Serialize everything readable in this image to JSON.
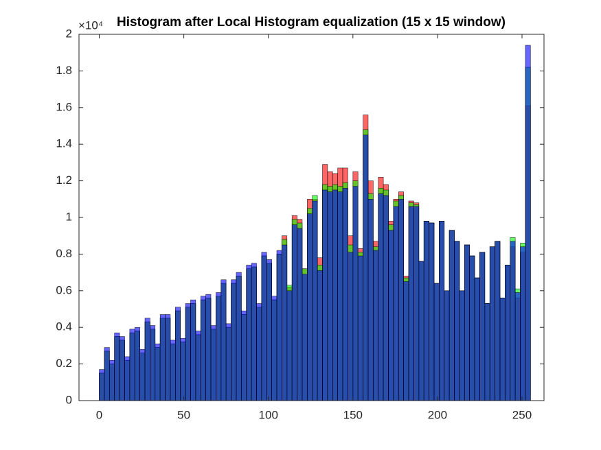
{
  "chart_data": {
    "type": "histogram",
    "title": "Histogram after Local Histogram equalization (15 x 15 window)",
    "y_exponent_label": "×10⁴",
    "bins": [
      0,
      3,
      6,
      9,
      12,
      15,
      18,
      21,
      24,
      27,
      30,
      33,
      36,
      39,
      42,
      45,
      48,
      51,
      54,
      57,
      60,
      63,
      66,
      69,
      72,
      75,
      78,
      81,
      84,
      87,
      90,
      93,
      96,
      99,
      102,
      105,
      108,
      111,
      114,
      117,
      120,
      123,
      126,
      129,
      132,
      135,
      138,
      141,
      144,
      147,
      150,
      153,
      156,
      159,
      162,
      165,
      168,
      171,
      174,
      177,
      180,
      183,
      186,
      189,
      192,
      195,
      198,
      201,
      204,
      207,
      210,
      213,
      216,
      219,
      222,
      225,
      228,
      231,
      234,
      237,
      240,
      243,
      246,
      249,
      252,
      255
    ],
    "series": [
      {
        "name": "Red",
        "color": "#ff0000",
        "values": [
          0.15,
          0.27,
          0.2,
          0.35,
          0.33,
          0.22,
          0.37,
          0.38,
          0.26,
          0.43,
          0.39,
          0.29,
          0.45,
          0.45,
          0.31,
          0.49,
          0.32,
          0.51,
          0.53,
          0.36,
          0.55,
          0.56,
          0.39,
          0.57,
          0.64,
          0.4,
          0.64,
          0.68,
          0.47,
          0.72,
          0.73,
          0.51,
          0.79,
          0.75,
          0.55,
          0.8,
          0.9,
          0.62,
          1.01,
          0.99,
          0.72,
          1.1,
          1.1,
          0.78,
          1.29,
          1.25,
          1.24,
          1.27,
          1.27,
          0.9,
          1.25,
          0.83,
          1.56,
          1.2,
          0.87,
          1.22,
          1.18,
          0.98,
          1.1,
          1.14,
          0.68,
          1.09,
          1.08,
          0.76,
          0.98,
          0.97,
          0.64,
          0.98,
          0.6,
          0.93,
          0.87,
          0.6,
          0.85,
          0.79,
          0.67,
          0.81,
          0.53,
          0.84,
          0.87,
          0.56,
          0.74,
          0.84,
          0.56,
          0.81,
          1.61
        ]
      },
      {
        "name": "Green",
        "color": "#00ff00",
        "values": [
          0.15,
          0.27,
          0.2,
          0.35,
          0.33,
          0.22,
          0.37,
          0.38,
          0.26,
          0.43,
          0.39,
          0.29,
          0.45,
          0.45,
          0.31,
          0.49,
          0.32,
          0.51,
          0.53,
          0.36,
          0.55,
          0.56,
          0.39,
          0.57,
          0.64,
          0.4,
          0.64,
          0.68,
          0.47,
          0.72,
          0.73,
          0.51,
          0.79,
          0.75,
          0.55,
          0.8,
          0.88,
          0.63,
          0.99,
          0.97,
          0.72,
          1.05,
          1.12,
          0.74,
          1.18,
          1.17,
          1.18,
          1.17,
          1.19,
          0.85,
          1.2,
          0.81,
          1.48,
          1.13,
          0.84,
          1.16,
          1.15,
          0.96,
          1.09,
          1.12,
          0.67,
          1.08,
          1.07,
          0.76,
          0.98,
          0.97,
          0.64,
          0.98,
          0.6,
          0.93,
          0.87,
          0.6,
          0.85,
          0.79,
          0.67,
          0.81,
          0.53,
          0.84,
          0.87,
          0.56,
          0.74,
          0.89,
          0.61,
          0.86,
          1.82
        ]
      },
      {
        "name": "Blue",
        "color": "#0000ff",
        "values": [
          0.17,
          0.29,
          0.22,
          0.37,
          0.35,
          0.24,
          0.39,
          0.4,
          0.28,
          0.45,
          0.41,
          0.31,
          0.47,
          0.47,
          0.33,
          0.51,
          0.34,
          0.53,
          0.55,
          0.38,
          0.57,
          0.58,
          0.41,
          0.59,
          0.66,
          0.42,
          0.66,
          0.7,
          0.49,
          0.74,
          0.75,
          0.53,
          0.81,
          0.77,
          0.57,
          0.82,
          0.85,
          0.6,
          0.96,
          0.94,
          0.69,
          1.02,
          1.09,
          0.71,
          1.15,
          1.14,
          1.15,
          1.14,
          1.16,
          0.81,
          1.17,
          0.79,
          1.45,
          1.1,
          0.82,
          1.13,
          1.12,
          0.93,
          1.06,
          1.1,
          0.65,
          1.06,
          1.06,
          0.76,
          0.98,
          0.97,
          0.64,
          0.98,
          0.6,
          0.93,
          0.87,
          0.6,
          0.85,
          0.79,
          0.67,
          0.81,
          0.53,
          0.84,
          0.87,
          0.56,
          0.74,
          0.87,
          0.59,
          0.84,
          1.94
        ]
      }
    ],
    "xlim": [
      -12,
      263
    ],
    "xticks": [
      0,
      50,
      100,
      150,
      200,
      250
    ],
    "ylim": [
      0,
      2
    ],
    "yticks": [
      0,
      0.2,
      0.4,
      0.6,
      0.8,
      1,
      1.2,
      1.4,
      1.6,
      1.8,
      2
    ],
    "face_alpha": 0.6
  }
}
